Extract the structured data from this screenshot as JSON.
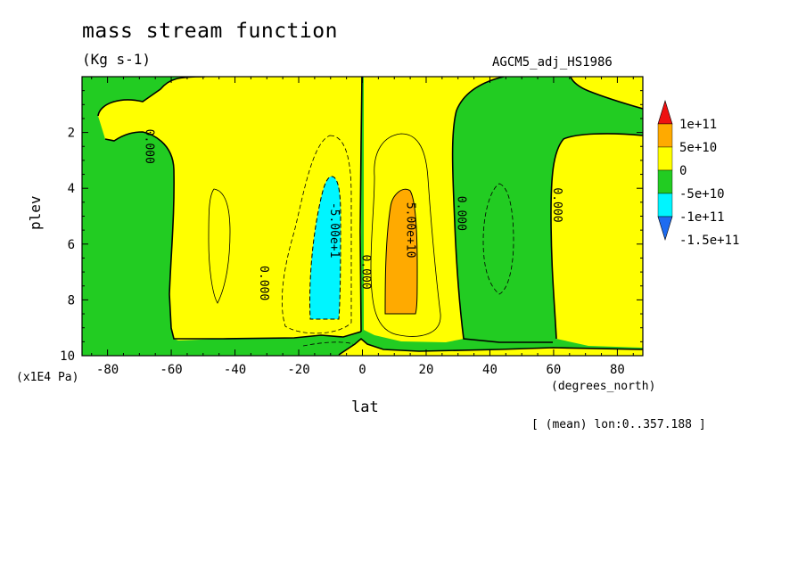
{
  "header": {
    "title": "mass stream function",
    "units": "(Kg s-1)",
    "run_name": "AGCM5_adj_HS1986",
    "footnote": "[ (mean) lon:0..357.188 ]"
  },
  "chart_data": {
    "type": "heatmap",
    "title": "mass stream function",
    "xlabel": "lat",
    "x_units": "(degrees_north)",
    "ylabel": "plev",
    "y_units": "(x1E4 Pa)",
    "xlim": [
      -88,
      88
    ],
    "ylim": [
      10,
      0
    ],
    "x_ticks": [
      -80,
      -60,
      -40,
      -20,
      0,
      20,
      40,
      60,
      80
    ],
    "x_tick_labels": [
      "-80",
      "-60",
      "-40",
      "-20",
      "0",
      "20",
      "40",
      "60",
      "80"
    ],
    "y_ticks": [
      2,
      4,
      6,
      8,
      10
    ],
    "y_tick_labels": [
      "2",
      "4",
      "6",
      "8",
      "10"
    ],
    "colorbar": {
      "levels": [
        -150000000000.0,
        -100000000000.0,
        -50000000000.0,
        0,
        50000000000.0,
        100000000000.0
      ],
      "level_labels": [
        "-1.5e+11",
        "-1e+11",
        "-5e+10",
        "0",
        "5e+10",
        "1e+11"
      ],
      "colors": [
        "#1e6cf0",
        "#00f5ff",
        "#22cc22",
        "#ffff00",
        "#ffaa00",
        "#ee1111"
      ]
    },
    "colors": {
      "below_-1e11": "#1e6cf0",
      "-1e11_to_-5e10": "#00f5ff",
      "-5e10_to_0": "#22cc22",
      "0_to_5e10": "#ffff00",
      "5e10_to_1e11": "#ffaa00",
      "above_1e11": "#ee1111"
    },
    "contour_labels": [
      {
        "text": "-5.00e+1",
        "lat": -10,
        "plev": 5.5
      },
      {
        "text": "5.00e+10",
        "lat": 14,
        "plev": 5.5
      },
      {
        "text": "0.000",
        "lat": -68,
        "plev": 2.5
      },
      {
        "text": "0.000",
        "lat": -32,
        "plev": 7.4
      },
      {
        "text": "0.000",
        "lat": 0,
        "plev": 7.0
      },
      {
        "text": "0.000",
        "lat": 30,
        "plev": 4.9
      },
      {
        "text": "0.000",
        "lat": 60,
        "plev": 4.6
      }
    ]
  }
}
